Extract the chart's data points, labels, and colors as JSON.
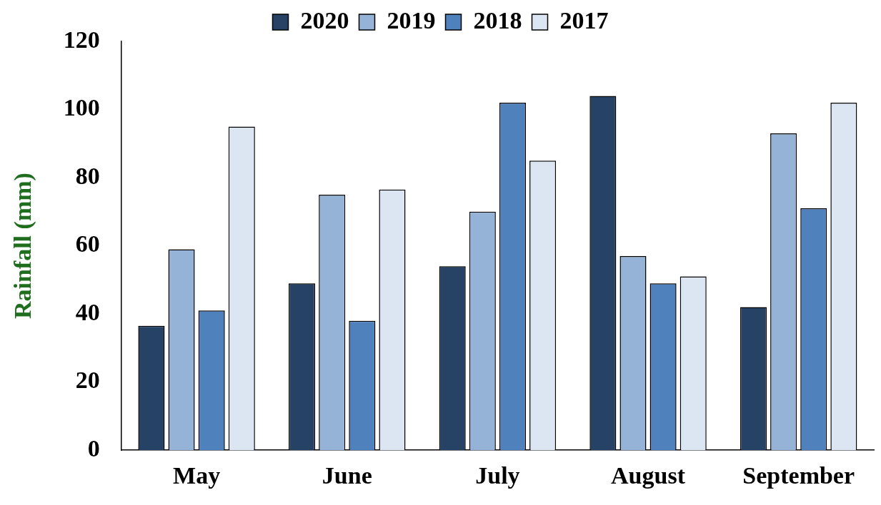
{
  "chart_data": {
    "type": "bar",
    "ylabel": "Rainfall (mm)",
    "categories": [
      "May",
      "June",
      "July",
      "August",
      "September"
    ],
    "series": [
      {
        "name": "2020",
        "color": "#264264",
        "values": [
          36.5,
          49,
          54,
          104,
          42
        ]
      },
      {
        "name": "2019",
        "color": "#95b3d7",
        "values": [
          59,
          75,
          70,
          57,
          93
        ]
      },
      {
        "name": "2018",
        "color": "#4f81bd",
        "values": [
          41,
          38,
          102,
          49,
          71
        ]
      },
      {
        "name": "2017",
        "color": "#dce6f2",
        "values": [
          95,
          76.5,
          85,
          51,
          102
        ]
      }
    ],
    "ylim": [
      0,
      120
    ],
    "yticks": [
      0,
      20,
      40,
      60,
      80,
      100,
      120
    ],
    "grid": false,
    "legend": "top"
  }
}
